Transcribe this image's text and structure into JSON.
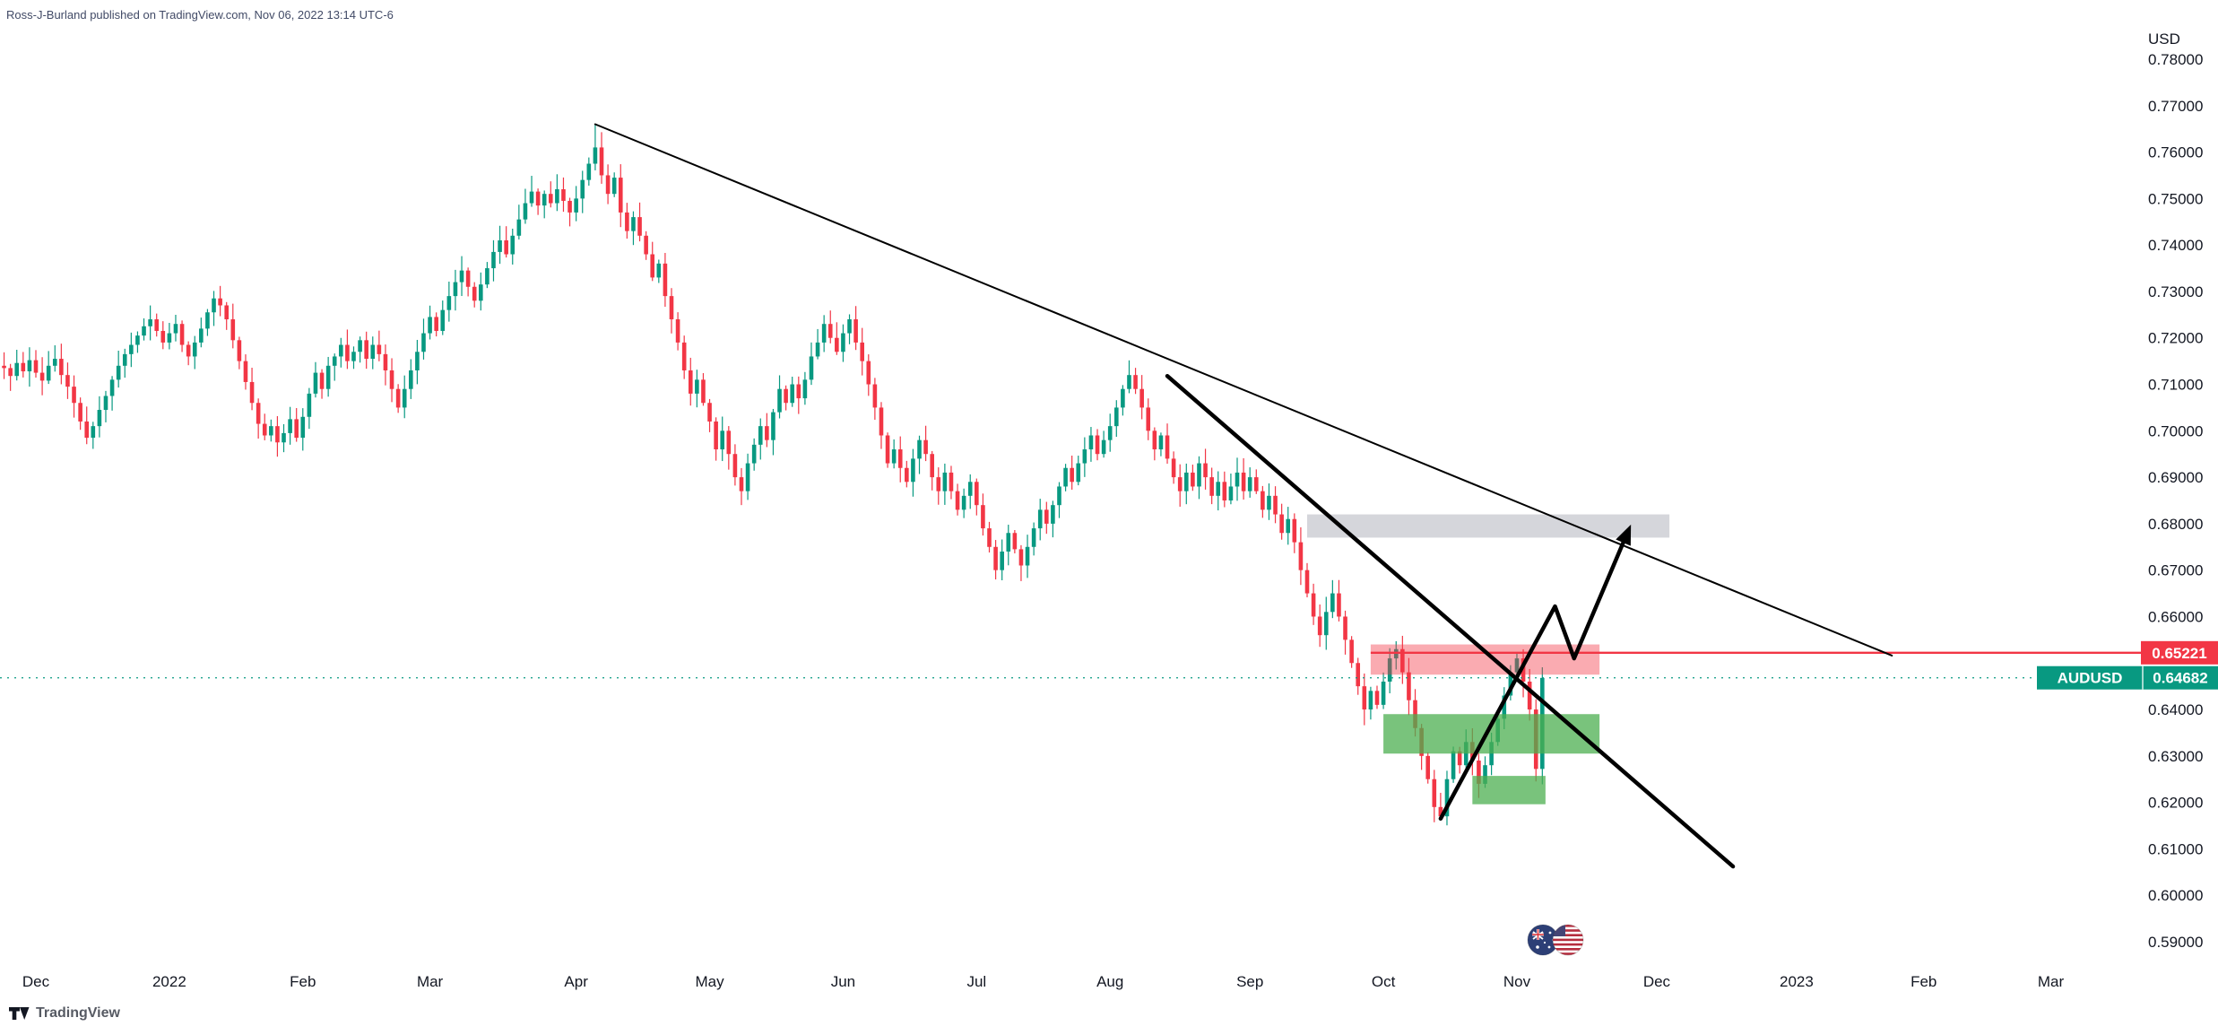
{
  "attribution": "Ross-J-Burland published on TradingView.com, Nov 06, 2022 13:14 UTC-6",
  "currency_label": "USD",
  "tradingview_logo_label": "TradingView",
  "chart_data": {
    "type": "candlestick",
    "symbol": "AUDUSD",
    "quote_currency": "USD",
    "timeframe": "daily",
    "background": "#ffffff",
    "grid": false,
    "ylim": [
      0.59,
      0.78
    ],
    "up_color": "#089981",
    "down_color": "#f23645",
    "open_first": 0.714,
    "closes": [
      0.7135,
      0.7118,
      0.7146,
      0.7128,
      0.7152,
      0.7125,
      0.7108,
      0.714,
      0.7155,
      0.712,
      0.7095,
      0.706,
      0.702,
      0.6985,
      0.701,
      0.7045,
      0.7075,
      0.711,
      0.714,
      0.7165,
      0.7185,
      0.7205,
      0.7225,
      0.724,
      0.7215,
      0.719,
      0.721,
      0.723,
      0.7185,
      0.716,
      0.719,
      0.722,
      0.7255,
      0.7285,
      0.727,
      0.724,
      0.7195,
      0.715,
      0.7105,
      0.706,
      0.7015,
      0.699,
      0.701,
      0.6975,
      0.6995,
      0.7025,
      0.6985,
      0.703,
      0.708,
      0.7125,
      0.709,
      0.714,
      0.716,
      0.7185,
      0.715,
      0.717,
      0.7195,
      0.7155,
      0.7185,
      0.7165,
      0.713,
      0.709,
      0.705,
      0.709,
      0.713,
      0.717,
      0.721,
      0.7245,
      0.7215,
      0.726,
      0.729,
      0.732,
      0.7345,
      0.731,
      0.728,
      0.7315,
      0.735,
      0.7385,
      0.741,
      0.738,
      0.742,
      0.7455,
      0.749,
      0.7515,
      0.7485,
      0.751,
      0.749,
      0.752,
      0.7495,
      0.747,
      0.75,
      0.754,
      0.7575,
      0.761,
      0.755,
      0.751,
      0.7545,
      0.747,
      0.743,
      0.746,
      0.742,
      0.738,
      0.733,
      0.736,
      0.729,
      0.724,
      0.719,
      0.713,
      0.708,
      0.711,
      0.706,
      0.702,
      0.696,
      0.7,
      0.695,
      0.69,
      0.687,
      0.693,
      0.697,
      0.701,
      0.698,
      0.704,
      0.709,
      0.706,
      0.71,
      0.707,
      0.711,
      0.716,
      0.719,
      0.723,
      0.72,
      0.717,
      0.721,
      0.724,
      0.719,
      0.715,
      0.71,
      0.705,
      0.699,
      0.693,
      0.696,
      0.692,
      0.689,
      0.694,
      0.698,
      0.695,
      0.69,
      0.687,
      0.691,
      0.687,
      0.683,
      0.686,
      0.689,
      0.684,
      0.679,
      0.675,
      0.67,
      0.674,
      0.678,
      0.6745,
      0.671,
      0.675,
      0.679,
      0.683,
      0.68,
      0.684,
      0.688,
      0.692,
      0.689,
      0.693,
      0.696,
      0.699,
      0.695,
      0.698,
      0.701,
      0.705,
      0.709,
      0.712,
      0.709,
      0.705,
      0.7,
      0.696,
      0.699,
      0.694,
      0.69,
      0.687,
      0.691,
      0.688,
      0.693,
      0.69,
      0.686,
      0.689,
      0.685,
      0.688,
      0.691,
      0.687,
      0.69,
      0.687,
      0.683,
      0.686,
      0.682,
      0.678,
      0.681,
      0.676,
      0.67,
      0.665,
      0.66,
      0.656,
      0.661,
      0.665,
      0.66,
      0.655,
      0.65,
      0.645,
      0.64,
      0.644,
      0.641,
      0.646,
      0.651,
      0.653,
      0.648,
      0.642,
      0.636,
      0.63,
      0.625,
      0.619,
      0.617,
      0.625,
      0.631,
      0.628,
      0.633,
      0.629,
      0.624,
      0.628,
      0.633,
      0.638,
      0.643,
      0.648,
      0.651,
      0.646,
      0.64,
      0.6272,
      0.6468
    ],
    "wick_overrides": [
      {
        "i": 93,
        "h": 0.766
      },
      {
        "i": 156,
        "l": 0.668
      },
      {
        "i": 219,
        "h": 0.6547
      },
      {
        "i": 226,
        "l": 0.6165
      },
      {
        "i": 238,
        "h": 0.6522
      }
    ],
    "y_ticks": [
      {
        "p": 0.78,
        "label": "0.78000"
      },
      {
        "p": 0.77,
        "label": "0.77000"
      },
      {
        "p": 0.76,
        "label": "0.76000"
      },
      {
        "p": 0.75,
        "label": "0.75000"
      },
      {
        "p": 0.74,
        "label": "0.74000"
      },
      {
        "p": 0.73,
        "label": "0.73000"
      },
      {
        "p": 0.72,
        "label": "0.72000"
      },
      {
        "p": 0.71,
        "label": "0.71000"
      },
      {
        "p": 0.7,
        "label": "0.70000"
      },
      {
        "p": 0.69,
        "label": "0.69000"
      },
      {
        "p": 0.68,
        "label": "0.68000"
      },
      {
        "p": 0.67,
        "label": "0.67000"
      },
      {
        "p": 0.66,
        "label": "0.66000"
      },
      {
        "p": 0.64,
        "label": "0.64000"
      },
      {
        "p": 0.63,
        "label": "0.63000"
      },
      {
        "p": 0.62,
        "label": "0.62000"
      },
      {
        "p": 0.61,
        "label": "0.61000"
      },
      {
        "p": 0.6,
        "label": "0.60000"
      },
      {
        "p": 0.59,
        "label": "0.59000"
      }
    ],
    "x_ticks": [
      {
        "i": 5,
        "label": "Dec"
      },
      {
        "i": 26,
        "label": "2022"
      },
      {
        "i": 47,
        "label": "Feb"
      },
      {
        "i": 67,
        "label": "Mar"
      },
      {
        "i": 90,
        "label": "Apr"
      },
      {
        "i": 111,
        "label": "May"
      },
      {
        "i": 132,
        "label": "Jun"
      },
      {
        "i": 153,
        "label": "Jul"
      },
      {
        "i": 174,
        "label": "Aug"
      },
      {
        "i": 196,
        "label": "Sep"
      },
      {
        "i": 217,
        "label": "Oct"
      },
      {
        "i": 238,
        "label": "Nov"
      },
      {
        "i": 260,
        "label": "Dec"
      },
      {
        "i": 282,
        "label": "2023"
      },
      {
        "i": 302,
        "label": "Feb"
      },
      {
        "i": 322,
        "label": "Mar"
      }
    ],
    "zones": [
      {
        "name": "resistance-zone-gray",
        "from_i": 205,
        "to_i": 262,
        "top": 0.682,
        "bottom": 0.677,
        "color": "#b2b5be",
        "opacity": 0.55
      },
      {
        "name": "supply-zone-red",
        "from_i": 215,
        "to_i": 251,
        "top": 0.654,
        "bottom": 0.6475,
        "color": "#f23645",
        "opacity": 0.42
      },
      {
        "name": "demand-zone-green-upper",
        "from_i": 217,
        "to_i": 251,
        "top": 0.639,
        "bottom": 0.6305,
        "color": "#4caf50",
        "opacity": 0.75
      },
      {
        "name": "demand-zone-green-lower",
        "from_i": 231,
        "to_i": 242.5,
        "top": 0.6257,
        "bottom": 0.6196,
        "color": "#4caf50",
        "opacity": 0.75
      }
    ],
    "trendlines": [
      {
        "name": "major-descending-trendline",
        "from_i": 93,
        "from_p": 0.766,
        "to_i": 297,
        "to_p": 0.6516,
        "color": "#000000",
        "width": 2
      },
      {
        "name": "steep-descending-trendline",
        "from_i": 183,
        "from_p": 0.7118,
        "to_i": 272,
        "to_p": 0.6062,
        "color": "#000000",
        "width": 4.5
      }
    ],
    "projection": {
      "name": "projected-price-path",
      "points": [
        {
          "i": 226,
          "p": 0.6165
        },
        {
          "i": 244,
          "p": 0.6622
        },
        {
          "i": 247,
          "p": 0.651
        },
        {
          "i": 255.5,
          "p": 0.6784
        }
      ],
      "color": "#000000",
      "width": 4.5,
      "arrow": true
    },
    "alert_line": {
      "price": 0.65221,
      "from_i": 215,
      "color": "#f23645"
    },
    "last_price_line": {
      "price": 0.64682,
      "color": "#089981",
      "style": "dotted"
    },
    "alert_badge": {
      "text": "0.65221",
      "price": 0.65221,
      "bg": "#f23645",
      "fg": "#ffffff"
    },
    "symbol_badge": {
      "symbol": "AUDUSD",
      "text": "0.64682",
      "price": 0.64682,
      "bg": "#089981",
      "fg": "#ffffff"
    }
  }
}
